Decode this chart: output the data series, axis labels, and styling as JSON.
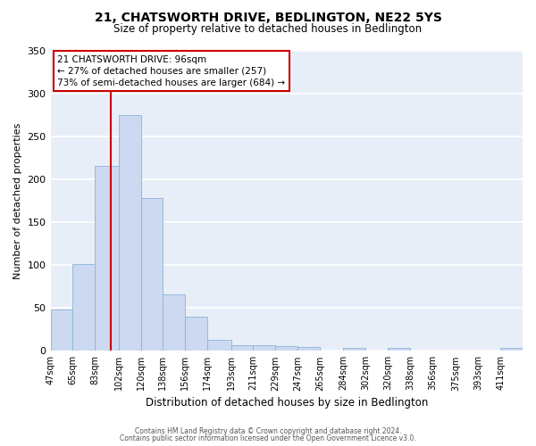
{
  "title": "21, CHATSWORTH DRIVE, BEDLINGTON, NE22 5YS",
  "subtitle": "Size of property relative to detached houses in Bedlington",
  "xlabel": "Distribution of detached houses by size in Bedlington",
  "ylabel": "Number of detached properties",
  "bar_labels": [
    "47sqm",
    "65sqm",
    "83sqm",
    "102sqm",
    "120sqm",
    "138sqm",
    "156sqm",
    "174sqm",
    "193sqm",
    "211sqm",
    "229sqm",
    "247sqm",
    "265sqm",
    "284sqm",
    "302sqm",
    "320sqm",
    "338sqm",
    "356sqm",
    "375sqm",
    "393sqm",
    "411sqm"
  ],
  "bar_heights": [
    48,
    101,
    215,
    275,
    178,
    66,
    40,
    13,
    7,
    7,
    6,
    4,
    0,
    3,
    0,
    3,
    0,
    0,
    0,
    0,
    3
  ],
  "bar_color": "#ccd9f0",
  "bar_edgecolor": "#8ab4d8",
  "vline_color": "#cc0000",
  "ylim": [
    0,
    350
  ],
  "yticks": [
    0,
    50,
    100,
    150,
    200,
    250,
    300,
    350
  ],
  "annotation_title": "21 CHATSWORTH DRIVE: 96sqm",
  "annotation_line1": "← 27% of detached houses are smaller (257)",
  "annotation_line2": "73% of semi-detached houses are larger (684) →",
  "annotation_box_color": "#ffffff",
  "annotation_box_edgecolor": "#cc0000",
  "footer1": "Contains HM Land Registry data © Crown copyright and database right 2024.",
  "footer2": "Contains public sector information licensed under the Open Government Licence v3.0.",
  "bg_color": "#ffffff",
  "plot_bg_color": "#e8eef8",
  "grid_color": "#ffffff",
  "property_sqm": 96,
  "bin_edges": [
    47,
    65,
    83,
    102,
    120,
    138,
    156,
    174,
    193,
    211,
    229,
    247,
    265,
    284,
    302,
    320,
    338,
    356,
    375,
    393,
    411,
    429
  ]
}
